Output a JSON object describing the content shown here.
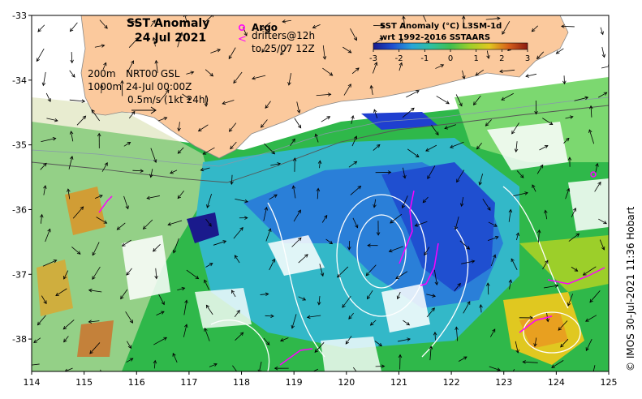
{
  "title": {
    "line1": "SST Anomaly",
    "line2": "24 Jul 2021"
  },
  "legend": {
    "argo_label": "Argo",
    "drifters_label": "drifters@12h",
    "drifters_range": "to 25/07 12Z",
    "argo_symbol": "o",
    "drifter_symbol": "<"
  },
  "info": {
    "contour_200": "200m",
    "contour_1000": "1000m",
    "altimetry": "NRT00 GSL",
    "time": "24-Jul 00:00Z",
    "scale": "0.5m/s (1kt 24h)"
  },
  "colorbar": {
    "title1": "SST Anomaly (°C) L3SM-1d",
    "title2": "wrt 1992-2016 SSTAARS",
    "ticks": [
      "-3",
      "-2",
      "-1",
      "0",
      "1",
      "2",
      "3"
    ],
    "range": [
      -3,
      3
    ],
    "colors": [
      "#1a1a8c",
      "#1f4fd0",
      "#2aa5d8",
      "#3fbf7f",
      "#8ccf2a",
      "#d8d020",
      "#e8a020",
      "#d85a10",
      "#8b1a10"
    ]
  },
  "axes": {
    "x_ticks": [
      "114",
      "115",
      "116",
      "117",
      "118",
      "119",
      "120",
      "121",
      "122",
      "123",
      "124",
      "125"
    ],
    "y_ticks": [
      "-33",
      "-34",
      "-35",
      "-36",
      "-37",
      "-38"
    ],
    "x_range": [
      114,
      125
    ],
    "y_range": [
      -38.5,
      -33
    ]
  },
  "credit": "© IMOS 30-Jul-2021 11:36 Hobart",
  "colors": {
    "land": "#fbc99d",
    "argo": "#ff00ff",
    "drifter": "#ff00ff"
  }
}
